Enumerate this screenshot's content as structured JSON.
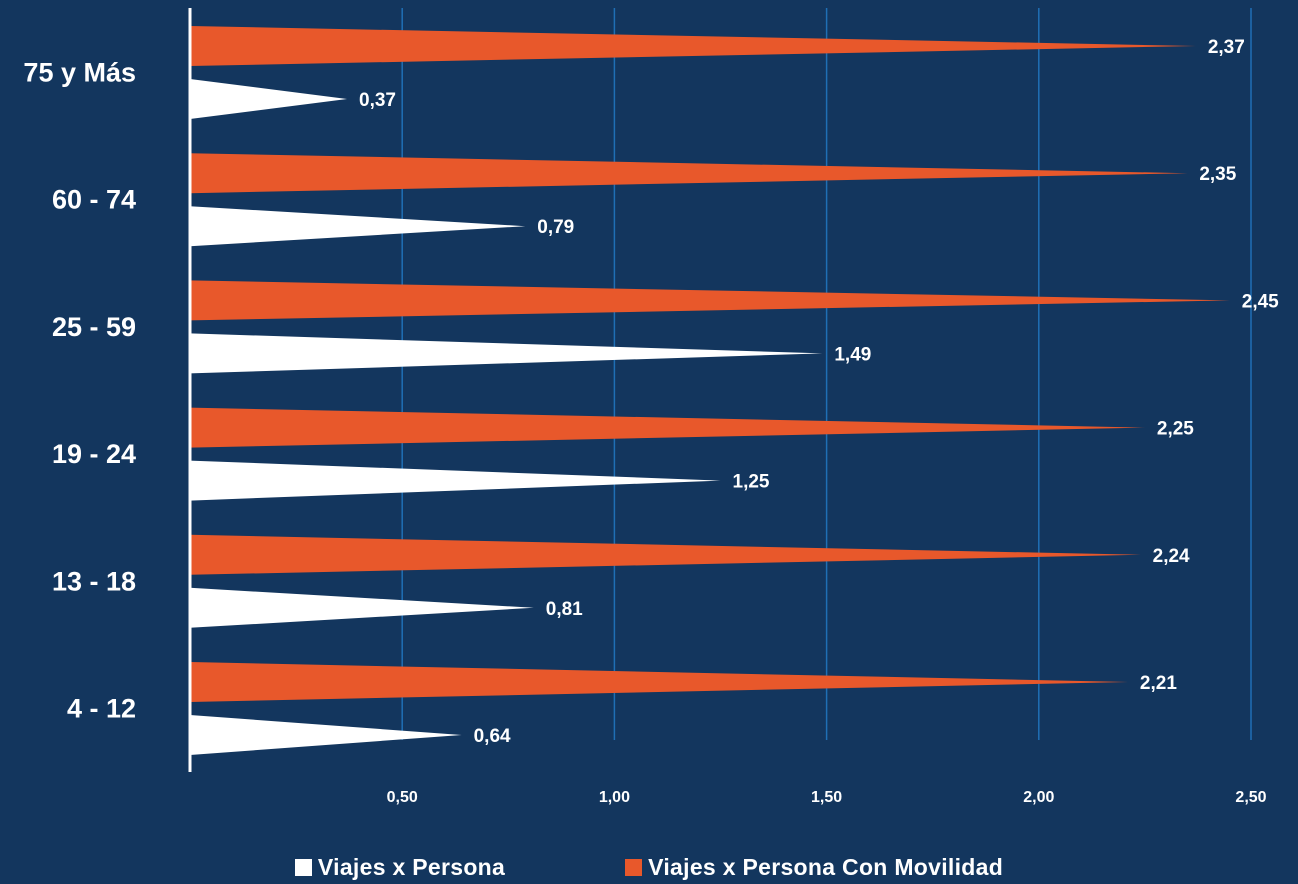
{
  "chart_data": {
    "type": "bar",
    "orientation": "horizontal",
    "bar_shape": "triangle",
    "categories": [
      "75 y Más",
      "60 - 74",
      "25 - 59",
      "19 - 24",
      "13 - 18",
      "4 - 12"
    ],
    "series": [
      {
        "name": "Viajes x Persona Con Movilidad",
        "color": "#e8582b",
        "values": [
          2.37,
          2.35,
          2.45,
          2.25,
          2.24,
          2.21
        ],
        "labels": [
          "2,37",
          "2,35",
          "2,45",
          "2,25",
          "2,24",
          "2,21"
        ]
      },
      {
        "name": "Viajes x Persona",
        "color": "#ffffff",
        "values": [
          0.37,
          0.79,
          1.49,
          1.25,
          0.81,
          0.64
        ],
        "labels": [
          "0,37",
          "0,79",
          "1,49",
          "1,25",
          "0,81",
          "0,64"
        ]
      }
    ],
    "xlim": [
      0,
      2.5
    ],
    "x_ticks": [
      0.5,
      1.0,
      1.5,
      2.0,
      2.5
    ],
    "x_tick_labels": [
      "0,50",
      "1,00",
      "1,50",
      "2,00",
      "2,50"
    ],
    "grid": "vertical",
    "gridline_color": "#1f6fb5",
    "background_color": "#13365e",
    "legend_position": "bottom-center"
  },
  "legend": {
    "items": [
      {
        "label": "Viajes x Persona",
        "color": "#ffffff"
      },
      {
        "label": "Viajes x Persona Con Movilidad",
        "color": "#e8582b"
      }
    ]
  }
}
